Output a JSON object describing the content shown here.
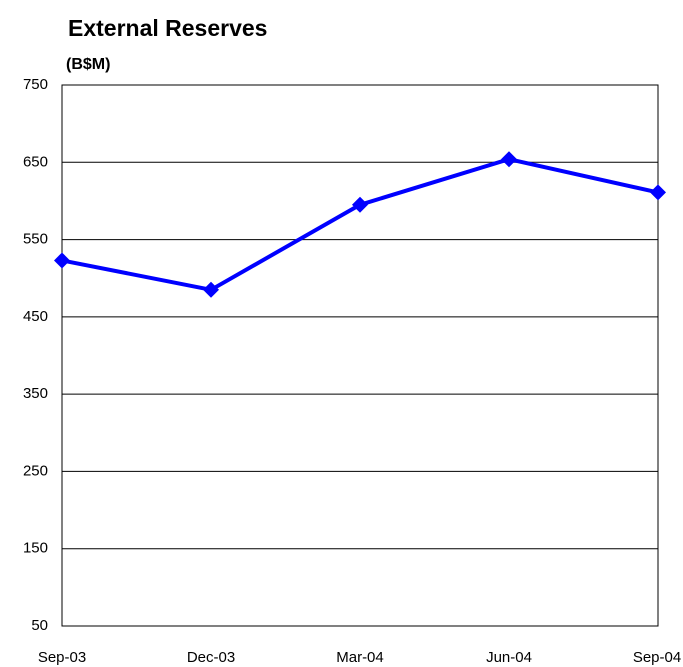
{
  "chart_data": {
    "type": "line",
    "title": "External Reserves",
    "y_label": "(B$M)",
    "categories": [
      "Sep-03",
      "Dec-03",
      "Mar-04",
      "Jun-04",
      "Sep-04"
    ],
    "series": [
      {
        "name": "External Reserves",
        "color": "#0000ff",
        "values": [
          523,
          485,
          595,
          654,
          611
        ]
      }
    ],
    "ylim": [
      50,
      750
    ],
    "yticks": [
      50,
      150,
      250,
      350,
      450,
      550,
      650,
      750
    ],
    "grid": true
  }
}
